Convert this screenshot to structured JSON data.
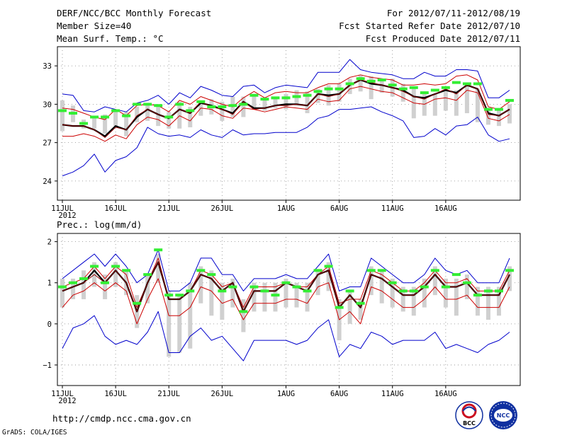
{
  "header": {
    "title": "DERF/NCC/BCC Monthly Forecast",
    "member_size": "Member Size=40",
    "variable": "Mean Surf. Temp.: °C",
    "forecast_period": "For 2012/07/11-2012/08/19",
    "fcst_started": "Fcst Started Refer Date 2012/07/10",
    "fcst_produced": "Fcst Produced Date 2012/07/11"
  },
  "footer": {
    "url": "http://cmdp.ncc.cma.gov.cn",
    "credit": "GrADS: COLA/IGES"
  },
  "logos": {
    "bcc": "BCC",
    "ncc": "NCC"
  },
  "colors": {
    "envelope": "#0000cc",
    "quartile": "#cc0000",
    "mean": "#000000",
    "median": "#8b0000",
    "observed": "#33ee33",
    "box": "#d0d0d0"
  },
  "chart_data": [
    {
      "type": "line",
      "title": "Mean Surf. Temp.: °C",
      "x_labels": [
        "11JUL",
        "16JUL",
        "21JUL",
        "26JUL",
        "1AUG",
        "6AUG",
        "11AUG",
        "16AUG"
      ],
      "x_label_days": [
        0,
        5,
        10,
        15,
        21,
        26,
        31,
        36
      ],
      "year_label": "2012",
      "ylim": [
        22.5,
        34.5
      ],
      "y_ticks": [
        24,
        27,
        30,
        33
      ],
      "y_tick_labels": [
        "24",
        "27",
        "30",
        "33"
      ],
      "days": 40,
      "series": [
        {
          "name": "ensemble max",
          "values": [
            30.8,
            30.7,
            29.5,
            29.4,
            29.8,
            29.6,
            29.4,
            30.1,
            30.3,
            30.7,
            30.0,
            30.9,
            30.5,
            31.4,
            31.1,
            30.7,
            30.6,
            31.4,
            31.5,
            30.9,
            31.3,
            31.5,
            31.4,
            31.3,
            32.5,
            32.5,
            32.5,
            33.5,
            32.7,
            32.5,
            32.4,
            32.3,
            32.0,
            32.0,
            32.5,
            32.2,
            32.2,
            32.7,
            32.7,
            32.6,
            30.5,
            30.5,
            31.1
          ]
        },
        {
          "name": "upper quartile",
          "values": [
            29.7,
            29.6,
            29.3,
            29.0,
            28.8,
            29.6,
            29.1,
            29.9,
            30.0,
            29.9,
            29.4,
            30.3,
            30.0,
            30.6,
            30.3,
            30.0,
            29.8,
            30.5,
            31.0,
            30.5,
            30.9,
            31.0,
            30.9,
            30.9,
            31.3,
            31.6,
            31.6,
            32.1,
            32.3,
            32.1,
            32.0,
            31.9,
            31.5,
            31.5,
            31.6,
            31.5,
            31.6,
            32.2,
            32.3,
            31.9,
            29.8,
            29.6,
            30.2
          ]
        },
        {
          "name": "ensemble mean",
          "values": [
            28.4,
            28.3,
            28.3,
            28.0,
            27.5,
            28.3,
            28.0,
            29.0,
            29.6,
            29.2,
            28.9,
            29.6,
            29.3,
            30.1,
            29.9,
            29.6,
            29.3,
            30.2,
            29.7,
            29.7,
            29.9,
            30.0,
            30.0,
            29.9,
            30.8,
            30.7,
            30.8,
            31.5,
            31.9,
            31.6,
            31.5,
            31.3,
            31.1,
            30.6,
            30.5,
            30.8,
            31.1,
            30.9,
            31.5,
            31.2,
            29.3,
            29.1,
            29.6
          ]
        },
        {
          "name": "ensemble median",
          "values": [
            28.4,
            28.3,
            28.3,
            28.0,
            27.4,
            28.2,
            28.0,
            29.1,
            29.6,
            29.2,
            28.9,
            29.6,
            29.3,
            30.2,
            29.8,
            29.6,
            29.2,
            30.2,
            29.6,
            29.7,
            29.9,
            29.9,
            30.0,
            29.9,
            30.8,
            30.6,
            30.8,
            31.5,
            31.9,
            31.7,
            31.5,
            31.3,
            31.0,
            30.6,
            30.4,
            30.8,
            31.2,
            30.8,
            31.5,
            31.2,
            29.2,
            29.1,
            29.6
          ]
        },
        {
          "name": "lower quartile",
          "values": [
            27.5,
            27.5,
            27.7,
            27.5,
            27.1,
            27.6,
            27.3,
            28.4,
            29.0,
            28.8,
            28.3,
            29.1,
            28.7,
            29.7,
            29.6,
            29.1,
            28.9,
            29.7,
            29.6,
            29.4,
            29.6,
            29.8,
            29.7,
            29.6,
            30.4,
            30.2,
            30.3,
            31.2,
            31.4,
            31.2,
            31.0,
            30.9,
            30.5,
            30.1,
            30.0,
            30.4,
            30.5,
            30.3,
            31.1,
            30.9,
            28.9,
            28.7,
            29.2
          ]
        },
        {
          "name": "ensemble min",
          "values": [
            24.4,
            24.7,
            25.2,
            26.1,
            24.7,
            25.6,
            25.9,
            26.6,
            28.2,
            27.7,
            27.5,
            27.6,
            27.4,
            28.0,
            27.6,
            27.4,
            28.0,
            27.6,
            27.7,
            27.7,
            27.8,
            27.8,
            27.8,
            28.2,
            28.9,
            29.1,
            29.6,
            29.6,
            29.7,
            29.8,
            29.4,
            29.1,
            28.7,
            27.4,
            27.5,
            28.1,
            27.6,
            28.3,
            28.4,
            29.0,
            27.6,
            27.1,
            27.3
          ]
        },
        {
          "name": "observed / climatology",
          "values": [
            29.5,
            29.3,
            28.5,
            29.0,
            29.0,
            29.5,
            29.1,
            30.0,
            30.0,
            29.9,
            29.0,
            30.0,
            29.5,
            30.2,
            29.8,
            29.8,
            29.9,
            30.0,
            30.7,
            30.4,
            30.5,
            30.5,
            30.6,
            30.7,
            31.0,
            31.2,
            31.2,
            31.6,
            32.0,
            31.8,
            31.9,
            31.5,
            31.2,
            31.3,
            30.9,
            31.1,
            31.3,
            31.7,
            31.6,
            31.6,
            29.6,
            29.6,
            30.3
          ]
        }
      ],
      "boxes": {
        "upper": [
          30.3,
          29.9,
          28.8,
          29.0,
          29.2,
          29.5,
          29.4,
          29.8,
          30.0,
          29.9,
          29.4,
          30.2,
          29.8,
          30.2,
          30.4,
          30.2,
          30.6,
          30.6,
          30.7,
          30.5,
          30.6,
          30.8,
          31.1,
          31.0,
          31.2,
          31.5,
          31.6,
          32.0,
          32.3,
          32.2,
          32.0,
          32.0,
          31.6,
          31.3,
          31.0,
          30.8,
          31.0,
          31.1,
          31.5,
          31.2,
          29.5,
          29.6,
          30.0
        ],
        "lower": [
          27.9,
          28.6,
          28.1,
          28.1,
          27.7,
          28.3,
          27.5,
          28.6,
          28.7,
          28.3,
          28.1,
          28.1,
          28.2,
          29.1,
          29.2,
          28.7,
          29.0,
          29.0,
          29.6,
          29.5,
          29.7,
          29.6,
          30.0,
          29.3,
          30.1,
          29.9,
          30.2,
          30.8,
          31.0,
          30.4,
          30.9,
          30.6,
          30.2,
          28.9,
          29.1,
          29.1,
          29.5,
          29.1,
          29.3,
          28.6,
          28.4,
          28.3,
          28.5
        ]
      }
    },
    {
      "type": "line",
      "title": "Prec.: log(mm/d)",
      "x_labels": [
        "11JUL",
        "16JUL",
        "21JUL",
        "26JUL",
        "1AUG",
        "6AUG",
        "11AUG",
        "16AUG"
      ],
      "x_label_days": [
        0,
        5,
        10,
        15,
        21,
        26,
        31,
        36
      ],
      "year_label": "2012",
      "ylim": [
        -1.5,
        2.2
      ],
      "y_ticks": [
        -1,
        0,
        1,
        2
      ],
      "y_tick_labels": [
        "−1",
        "0",
        "1",
        "2"
      ],
      "days": 40,
      "series": [
        {
          "name": "ensemble max",
          "values": [
            1.1,
            1.3,
            1.5,
            1.7,
            1.4,
            1.7,
            1.4,
            1.0,
            1.2,
            1.8,
            0.8,
            0.8,
            1.0,
            1.6,
            1.6,
            1.2,
            1.2,
            0.8,
            1.1,
            1.1,
            1.1,
            1.2,
            1.1,
            1.1,
            1.4,
            1.7,
            0.8,
            0.9,
            0.9,
            1.6,
            1.4,
            1.2,
            1.0,
            1.0,
            1.2,
            1.6,
            1.3,
            1.2,
            1.3,
            1.0,
            1.0,
            1.0,
            1.6
          ]
        },
        {
          "name": "upper quartile",
          "values": [
            0.9,
            1.0,
            1.1,
            1.4,
            1.1,
            1.4,
            1.2,
            0.4,
            1.0,
            1.6,
            0.6,
            0.6,
            0.8,
            1.3,
            1.2,
            0.9,
            1.0,
            0.4,
            0.9,
            0.9,
            0.9,
            1.0,
            0.9,
            0.9,
            1.2,
            1.4,
            0.5,
            0.6,
            0.6,
            1.3,
            1.2,
            1.0,
            0.8,
            0.8,
            1.0,
            1.3,
            1.0,
            1.0,
            1.1,
            0.8,
            0.8,
            0.8,
            1.3
          ]
        },
        {
          "name": "ensemble mean",
          "values": [
            0.8,
            0.9,
            1.0,
            1.3,
            1.0,
            1.3,
            1.0,
            0.3,
            1.0,
            1.5,
            0.6,
            0.6,
            0.8,
            1.2,
            1.1,
            0.8,
            1.0,
            0.3,
            0.8,
            0.8,
            0.8,
            1.0,
            0.9,
            0.8,
            1.2,
            1.3,
            0.4,
            0.7,
            0.4,
            1.2,
            1.1,
            0.9,
            0.7,
            0.7,
            0.9,
            1.2,
            0.9,
            0.9,
            1.0,
            0.7,
            0.7,
            0.7,
            1.2
          ]
        },
        {
          "name": "ensemble median",
          "values": [
            0.8,
            0.9,
            1.0,
            1.2,
            1.0,
            1.3,
            1.0,
            0.3,
            1.0,
            1.5,
            0.6,
            0.6,
            0.8,
            1.2,
            1.1,
            0.8,
            1.0,
            0.3,
            0.8,
            0.8,
            0.8,
            1.0,
            0.9,
            0.8,
            1.2,
            1.3,
            0.4,
            0.7,
            0.4,
            1.2,
            1.1,
            0.9,
            0.7,
            0.7,
            0.9,
            1.2,
            0.9,
            0.9,
            1.0,
            0.7,
            0.7,
            0.7,
            1.2
          ]
        },
        {
          "name": "lower quartile",
          "values": [
            0.4,
            0.7,
            0.8,
            1.0,
            0.8,
            1.0,
            0.8,
            0.0,
            0.6,
            1.1,
            0.2,
            0.2,
            0.4,
            0.9,
            0.8,
            0.5,
            0.6,
            0.1,
            0.5,
            0.5,
            0.5,
            0.6,
            0.6,
            0.5,
            0.9,
            1.0,
            0.1,
            0.3,
            0.0,
            0.9,
            0.8,
            0.6,
            0.4,
            0.4,
            0.6,
            0.9,
            0.6,
            0.6,
            0.7,
            0.4,
            0.4,
            0.4,
            0.9
          ]
        },
        {
          "name": "ensemble min",
          "values": [
            -0.6,
            -0.1,
            0.0,
            0.2,
            -0.3,
            -0.5,
            -0.4,
            -0.5,
            -0.2,
            0.3,
            -0.7,
            -0.7,
            -0.3,
            -0.1,
            -0.4,
            -0.3,
            -0.6,
            -0.9,
            -0.4,
            -0.4,
            -0.4,
            -0.4,
            -0.5,
            -0.4,
            -0.1,
            0.1,
            -0.8,
            -0.5,
            -0.6,
            -0.2,
            -0.3,
            -0.5,
            -0.4,
            -0.4,
            -0.4,
            -0.2,
            -0.6,
            -0.5,
            -0.6,
            -0.7,
            -0.5,
            -0.4,
            -0.2
          ]
        },
        {
          "name": "observed / climatology",
          "values": [
            0.9,
            1.0,
            1.1,
            1.4,
            1.0,
            1.4,
            1.3,
            0.5,
            1.2,
            1.8,
            0.7,
            0.7,
            0.8,
            1.3,
            1.2,
            0.8,
            0.9,
            0.3,
            0.9,
            0.8,
            0.7,
            1.0,
            0.9,
            0.8,
            1.3,
            1.4,
            0.4,
            0.8,
            0.5,
            1.3,
            1.3,
            1.0,
            0.8,
            0.8,
            0.9,
            1.3,
            0.9,
            1.2,
            1.0,
            0.7,
            0.8,
            0.8,
            1.3
          ]
        }
      ],
      "boxes": {
        "upper": [
          1.1,
          1.1,
          1.3,
          1.5,
          1.2,
          1.5,
          1.3,
          0.7,
          1.2,
          1.7,
          0.8,
          0.7,
          1.0,
          1.4,
          1.3,
          1.0,
          1.1,
          0.6,
          1.0,
          1.0,
          1.0,
          1.1,
          1.0,
          1.0,
          1.3,
          1.5,
          0.6,
          0.8,
          0.6,
          1.4,
          1.3,
          1.1,
          0.9,
          0.9,
          1.1,
          1.4,
          1.1,
          1.1,
          1.2,
          0.9,
          0.9,
          0.9,
          1.4
        ],
        "lower": [
          0.4,
          0.6,
          0.6,
          0.9,
          0.6,
          0.9,
          0.7,
          -0.1,
          0.5,
          1.0,
          -0.8,
          -0.7,
          -0.6,
          0.5,
          0.2,
          0.1,
          0.4,
          -0.2,
          0.3,
          0.3,
          0.3,
          0.4,
          0.4,
          0.3,
          0.7,
          0.8,
          -0.4,
          0.0,
          0.1,
          0.7,
          0.5,
          0.4,
          0.3,
          0.2,
          0.4,
          0.7,
          0.4,
          0.2,
          0.6,
          0.2,
          0.1,
          0.2,
          0.8
        ]
      }
    }
  ]
}
